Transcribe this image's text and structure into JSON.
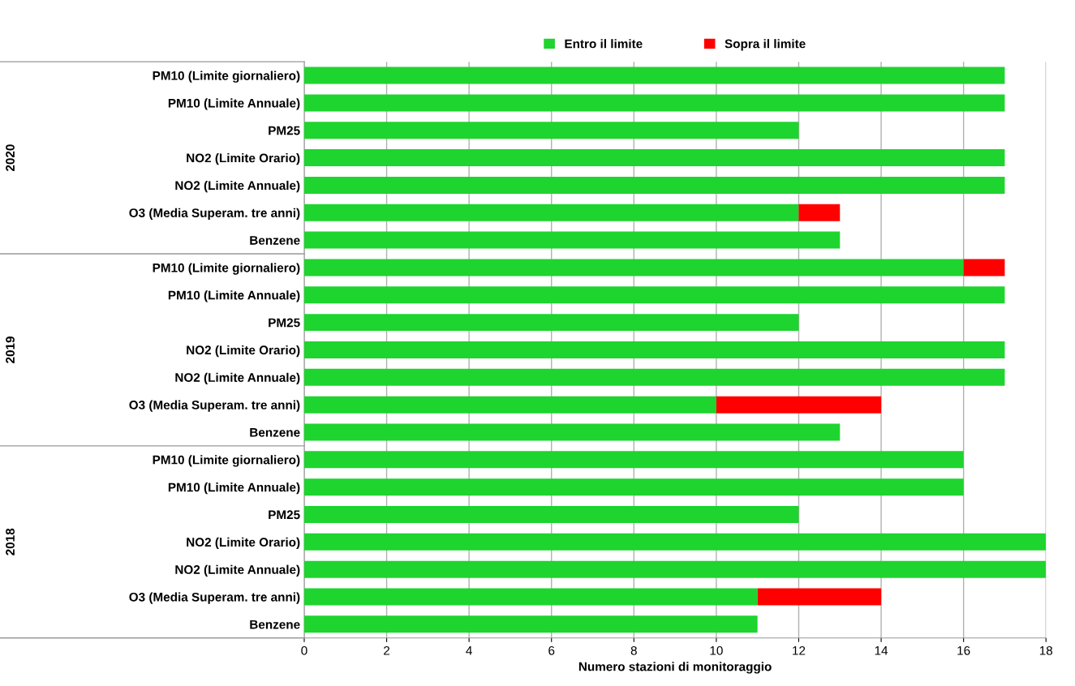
{
  "chart_data": {
    "type": "bar",
    "orientation": "horizontal",
    "stacked": true,
    "categories": [
      "PM10 (Limite giornaliero)",
      "PM10 (Limite Annuale)",
      "PM25",
      "NO2 (Limite Orario)",
      "NO2 (Limite Annuale)",
      "O3 (Media Superam. tre anni)",
      "Benzene",
      "PM10 (Limite giornaliero)",
      "PM10 (Limite Annuale)",
      "PM25",
      "NO2 (Limite Orario)",
      "NO2 (Limite Annuale)",
      "O3 (Media Superam. tre anni)",
      "Benzene",
      "PM10 (Limite giornaliero)",
      "PM10 (Limite Annuale)",
      "PM25",
      "NO2 (Limite Orario)",
      "NO2 (Limite Annuale)",
      "O3 (Media Superam. tre anni)",
      "Benzene"
    ],
    "series": [
      {
        "name": "Entro il limite",
        "color": "#1ed42e",
        "values": [
          17,
          17,
          12,
          17,
          17,
          12,
          13,
          16,
          17,
          12,
          17,
          17,
          10,
          13,
          16,
          16,
          12,
          18,
          18,
          11,
          11
        ]
      },
      {
        "name": "Sopra il limite",
        "color": "#ff0000",
        "values": [
          0,
          0,
          0,
          0,
          0,
          1,
          0,
          1,
          0,
          0,
          0,
          0,
          4,
          0,
          0,
          0,
          0,
          0,
          0,
          3,
          0
        ]
      }
    ],
    "xlabel": "Numero stazioni di monitoraggio",
    "xlim": [
      0,
      18
    ],
    "xticks": [
      0,
      2,
      4,
      6,
      8,
      10,
      12,
      14,
      16,
      18
    ],
    "grid": "x",
    "legend": "top",
    "annotations": [
      "2020",
      "2019",
      "2018"
    ]
  }
}
